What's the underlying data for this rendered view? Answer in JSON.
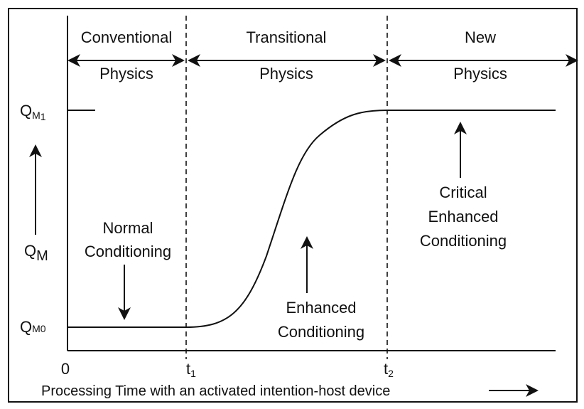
{
  "regions": [
    {
      "lines": [
        "Conventional",
        "Physics"
      ]
    },
    {
      "lines": [
        "Transitional",
        "Physics"
      ]
    },
    {
      "lines": [
        "New",
        "Physics"
      ]
    }
  ],
  "y_axis": {
    "label": {
      "base": "Q",
      "sub": "M"
    },
    "ticks": [
      {
        "base": "Q",
        "sub": "M",
        "index": "1"
      },
      {
        "base": "Q",
        "sub": "M",
        "index": "0"
      }
    ]
  },
  "x_axis": {
    "ticks": [
      {
        "base": "0"
      },
      {
        "base": "t",
        "sub": "1"
      },
      {
        "base": "t",
        "sub": "2"
      }
    ],
    "title": "Processing Time with an activated intention-host device"
  },
  "annotations": [
    {
      "lines": [
        "Normal",
        "Conditioning"
      ]
    },
    {
      "lines": [
        "Enhanced",
        "Conditioning"
      ]
    },
    {
      "lines": [
        "Critical",
        "Enhanced",
        "Conditioning"
      ]
    }
  ]
}
